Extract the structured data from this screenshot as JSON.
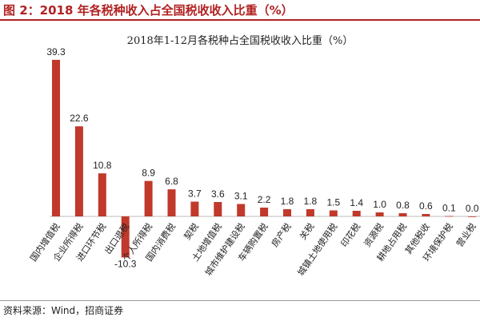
{
  "figure": {
    "title": "图 2：2018 年各税种收入占全国税收收入比重（%）",
    "source": "资料来源：Wind，招商证券"
  },
  "colors": {
    "bar": "#c0392b",
    "accent": "#b22222"
  },
  "chart_data": {
    "type": "bar",
    "title": "2018年1-12月各税种占全国税收收入比重（%）",
    "xlabel": "",
    "ylabel": "",
    "categories": [
      "国内增值税",
      "企业所得税",
      "进口环节税",
      "出口退税",
      "个人所得税",
      "国内消费税",
      "契税",
      "土地增值税",
      "城市维护建设税",
      "车辆购置税",
      "房产税",
      "关税",
      "城镇土地使用税",
      "印花税",
      "资源税",
      "耕地占用税",
      "其他税收",
      "环境保护税",
      "营业税"
    ],
    "values": [
      39.3,
      22.6,
      10.8,
      -10.3,
      8.9,
      6.8,
      3.7,
      3.6,
      3.1,
      2.2,
      1.8,
      1.8,
      1.5,
      1.4,
      1.0,
      0.8,
      0.6,
      0.1,
      0.0
    ],
    "value_labels": [
      "39.3",
      "22.6",
      "10.8",
      "-10.3",
      "8.9",
      "6.8",
      "3.7",
      "3.6",
      "3.1",
      "2.2",
      "1.8",
      "1.8",
      "1.5",
      "1.4",
      "1.0",
      "0.8",
      "0.6",
      "0.1",
      "0.0"
    ],
    "grid": false,
    "legend": "none"
  }
}
